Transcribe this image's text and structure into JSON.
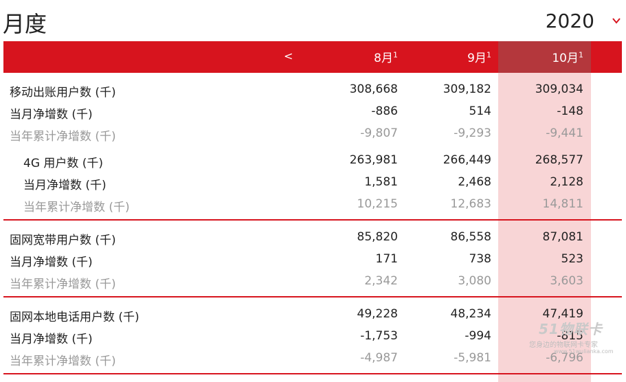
{
  "page": {
    "title": "月度",
    "year": "2020"
  },
  "header": {
    "prev": "<",
    "months": [
      "8月",
      "9月",
      "10月"
    ],
    "footnote": "1"
  },
  "sections": [
    {
      "rows": [
        {
          "label": "移动出账用户数 (千)",
          "values": [
            "308,668",
            "309,182",
            "309,034"
          ]
        },
        {
          "label": "当月净增数 (千)",
          "values": [
            "-886",
            "514",
            "-148"
          ]
        },
        {
          "label": "当年累计净增数 (千)",
          "values": [
            "-9,807",
            "-9,293",
            "-9,441"
          ]
        },
        {
          "label": "4G 用户数 (千)",
          "values": [
            "263,981",
            "266,449",
            "268,577"
          ]
        },
        {
          "label": "当月净增数 (千)",
          "values": [
            "1,581",
            "2,468",
            "2,128"
          ]
        },
        {
          "label": "当年累计净增数 (千)",
          "values": [
            "10,215",
            "12,683",
            "14,811"
          ]
        }
      ]
    },
    {
      "rows": [
        {
          "label": "固网宽带用户数 (千)",
          "values": [
            "85,820",
            "86,558",
            "87,081"
          ]
        },
        {
          "label": "当月净增数 (千)",
          "values": [
            "171",
            "738",
            "523"
          ]
        },
        {
          "label": "当年累计净增数 (千)",
          "values": [
            "2,342",
            "3,080",
            "3,603"
          ]
        }
      ]
    },
    {
      "rows": [
        {
          "label": "固网本地电话用户数 (千)",
          "values": [
            "49,228",
            "48,234",
            "47,419"
          ]
        },
        {
          "label": "当月净增数 (千)",
          "values": [
            "-1,753",
            "-994",
            "-815"
          ]
        },
        {
          "label": "当年累计净增数 (千)",
          "values": [
            "-4,987",
            "-5,981",
            "-6,796"
          ]
        }
      ]
    }
  ],
  "watermark": {
    "logo": "51物联卡",
    "tagline": "您身边的物联网卡专家",
    "url": "www.51wulianka.com"
  },
  "colors": {
    "accent": "#d7141e",
    "highlight_header": "#b4373c"
  }
}
